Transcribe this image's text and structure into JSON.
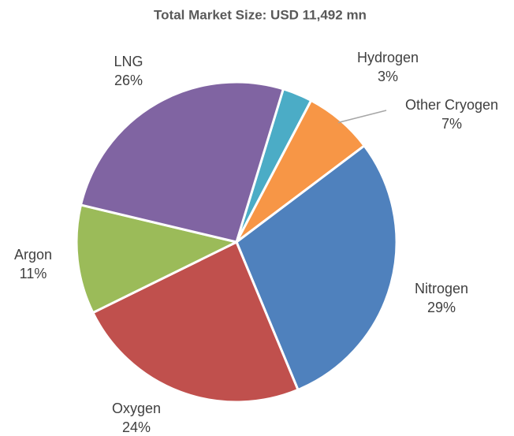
{
  "chart_data": {
    "type": "pie",
    "title": "Total Market Size: USD 11,492 mn",
    "categories": [
      "Hydrogen",
      "Other Cryogen",
      "Nitrogen",
      "Oxygen",
      "Argon",
      "LNG"
    ],
    "values": [
      3,
      7,
      29,
      24,
      11,
      26
    ],
    "value_labels": [
      "3%",
      "7%",
      "29%",
      "24%",
      "11%",
      "26%"
    ],
    "colors": [
      "#4bacc6",
      "#f79646",
      "#4f81bd",
      "#c0504d",
      "#9bbb59",
      "#8064a2"
    ]
  }
}
